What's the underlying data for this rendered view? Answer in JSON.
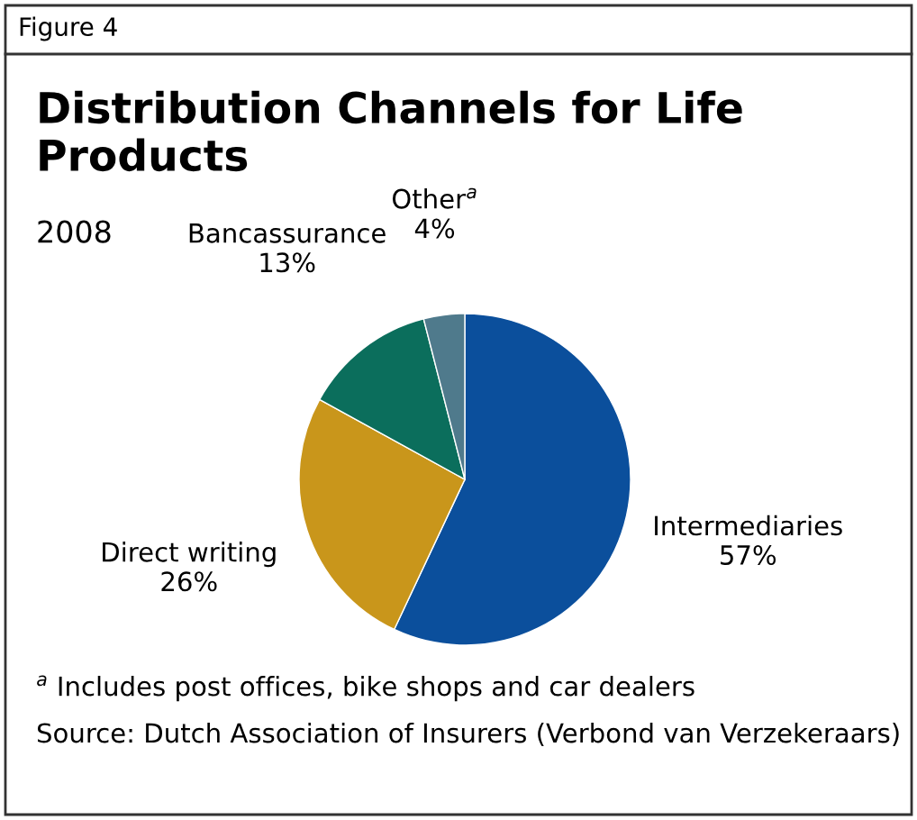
{
  "chart_data": {
    "type": "pie",
    "title": "Distribution Channels for Life Products",
    "subtitle": "2008",
    "categories": [
      "Intermediaries",
      "Direct writing",
      "Bancassurance",
      "Other$^{a}$"
    ],
    "values": [
      57,
      26,
      13,
      4
    ],
    "colors": [
      "#0b4f9c",
      "#c9961b",
      "#0b6e5c",
      "#4f7a8c"
    ],
    "value_labels": [
      "57%",
      "26%",
      "13%",
      "4%"
    ],
    "annotations": [
      "Figure 4",
      "$^{a}$ Includes post offices, bike shops and car dealers",
      "Source: Dutch Association of Insurers (Verbond van Verzekeraars)"
    ]
  }
}
